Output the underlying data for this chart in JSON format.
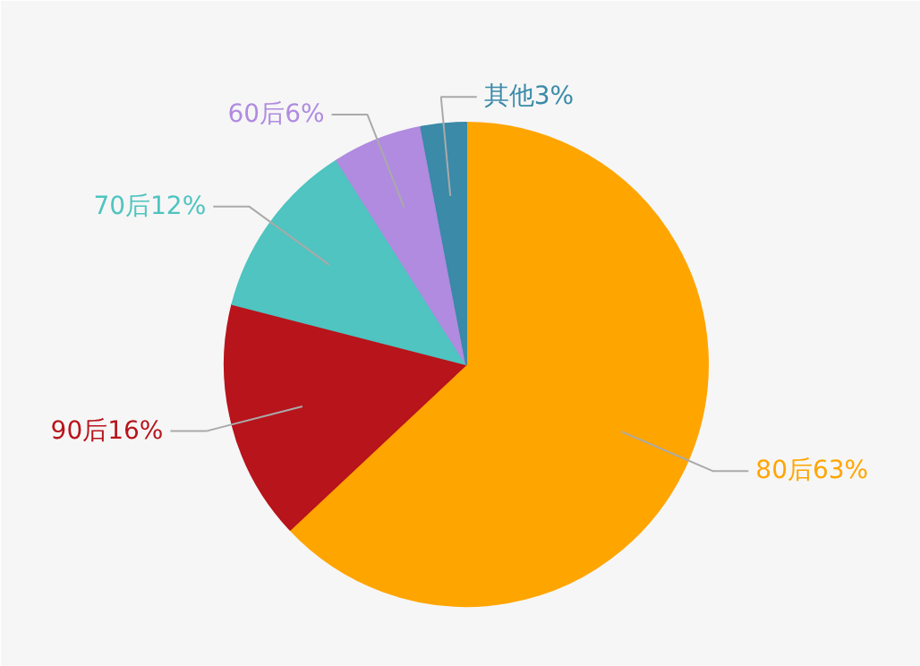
{
  "chart_data": {
    "type": "pie",
    "categories": [
      "80后",
      "90后",
      "70后",
      "60后",
      "其他"
    ],
    "values": [
      63,
      16,
      12,
      6,
      3
    ],
    "colors": [
      "#ffa500",
      "#b8141c",
      "#4fc4c0",
      "#b08be0",
      "#3a8aa8"
    ],
    "value_labels": [
      "63%",
      "16%",
      "12%",
      "6%",
      "3%"
    ],
    "legend": false
  }
}
